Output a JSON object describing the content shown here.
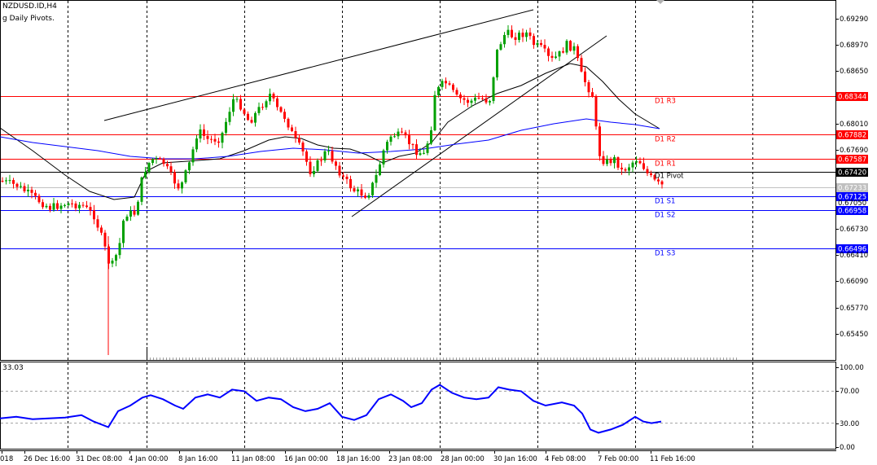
{
  "header": {
    "symbol_line": "NZDUSD.ID,H4",
    "indicator_line": "g Daily Pivots.",
    "rsi_value": "33.03"
  },
  "colors": {
    "bull_candle": "#00a000",
    "bear_candle": "#ff0000",
    "resistance": "#ff0000",
    "support": "#0000ff",
    "pivot": "#000000",
    "ma_fast": "#000000",
    "ma_slow": "#0000ff",
    "rsi": "#0000ff",
    "label_bg_blue": "#0000ff",
    "label_bg_red": "#ff0000"
  },
  "price_axis": {
    "ticks": [
      "0.69290",
      "0.68970",
      "0.68650",
      "0.68010",
      "0.67690",
      "0.66730",
      "0.66410",
      "0.66090",
      "0.65770",
      "0.65450"
    ]
  },
  "pivots": [
    {
      "name": "D1 R3",
      "price": "0.68344",
      "type": "resistance"
    },
    {
      "name": "D1 R2",
      "price": "0.67882",
      "type": "resistance"
    },
    {
      "name": "D1 R1",
      "price": "0.67587",
      "type": "resistance"
    },
    {
      "name": "D1 Pivot",
      "price": "0.67420",
      "type": "pivot"
    },
    {
      "name": "D1 S1",
      "price": "0.67125",
      "type": "support"
    },
    {
      "name": "D1 S2",
      "price": "0.66958",
      "type": "support"
    },
    {
      "name": "D1 S3",
      "price": "0.66496",
      "type": "support"
    }
  ],
  "price_labels_extra": {
    "bid": "0.67233",
    "overlap": "0.67050"
  },
  "rsi_axis": {
    "ticks": [
      "100.00",
      "70.00",
      "30.00",
      "0.00"
    ]
  },
  "time_axis": {
    "labels": [
      "018",
      "26 Dec 16:00",
      "31 Dec 08:00",
      "4 Jan 00:00",
      "8 Jan 16:00",
      "11 Jan 08:00",
      "16 Jan 00:00",
      "18 Jan 16:00",
      "23 Jan 08:00",
      "28 Jan 00:00",
      "30 Jan 16:00",
      "4 Feb 08:00",
      "7 Feb 00:00",
      "11 Feb 16:00"
    ]
  }
}
